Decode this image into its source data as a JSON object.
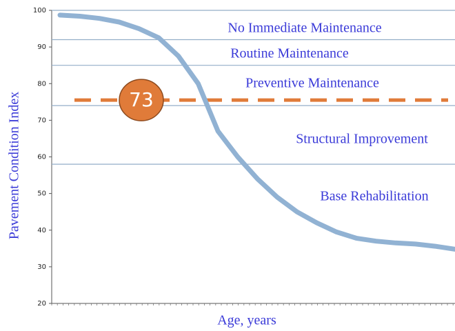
{
  "chart_data": {
    "type": "line",
    "y_label": "Pavement  Condition Index",
    "x_label": "Age, years",
    "categories": [
      null,
      null,
      null,
      null,
      null,
      null,
      null,
      null,
      null,
      null,
      null,
      null,
      null,
      null,
      null,
      null,
      null,
      null,
      null,
      null,
      null
    ],
    "series": [
      {
        "color": "#91b2d3",
        "values": [
          98.7,
          98.4,
          97.8,
          96.8,
          95,
          92.5,
          87.5,
          80,
          67,
          60,
          54,
          49,
          45,
          42,
          39.5,
          37.8,
          37,
          36.5,
          36.2,
          35.6,
          34.8
        ]
      }
    ],
    "ylim": [
      20,
      100
    ],
    "yticks": [
      20,
      30,
      40,
      50,
      60,
      70,
      80,
      90,
      100
    ],
    "reference_lines": [
      100,
      92,
      85,
      74,
      58
    ],
    "reference_color": "#93aec8",
    "zones": [
      "No Immediate Maintenance",
      "Routine Maintenance",
      "Preventive Maintenance",
      "Structural Improvement",
      "Base Rehabilitation"
    ],
    "threshold": {
      "value": 75.5,
      "label": "73",
      "color": "#e07b39"
    }
  }
}
